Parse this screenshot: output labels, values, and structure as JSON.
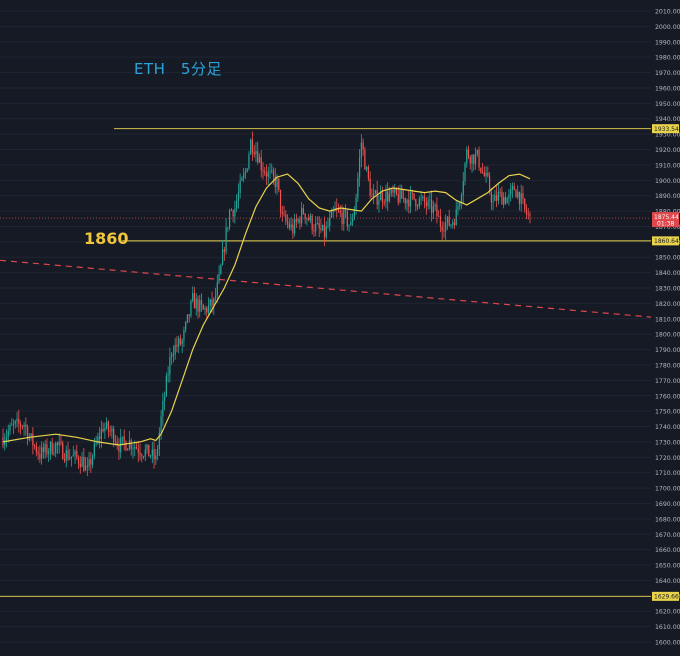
{
  "chart_data": {
    "type": "candlestick",
    "title": "ETH　5分足",
    "symbol": "ETH",
    "timeframe": "5分足",
    "level_label": "1860",
    "y_axis": {
      "ticks": [
        2010,
        2000,
        1990,
        1980,
        1970,
        1960,
        1950,
        1940,
        1930,
        1920,
        1910,
        1900,
        1890,
        1880,
        1870,
        1860,
        1850,
        1840,
        1830,
        1820,
        1810,
        1800,
        1790,
        1780,
        1770,
        1760,
        1750,
        1740,
        1730,
        1720,
        1710,
        1700,
        1690,
        1680,
        1670,
        1660,
        1650,
        1640,
        1630,
        1620,
        1610,
        1600
      ],
      "ylim": [
        1600,
        2010
      ],
      "tick_format": "0.00",
      "position": "right"
    },
    "horizontal_lines": [
      {
        "value": 1933.54,
        "label": "1933.54",
        "color": "#d4c04a",
        "style": "solid"
      },
      {
        "value": 1860.64,
        "label": "1860.64",
        "color": "#e8d34a",
        "style": "solid"
      },
      {
        "value": 1629.66,
        "label": "1629.66",
        "color": "#d4c04a",
        "style": "solid"
      }
    ],
    "trendline": {
      "from": {
        "x": 0,
        "y": 1848
      },
      "to": {
        "x": 130,
        "y": 1809
      },
      "color": "#e0474c",
      "style": "dashed"
    },
    "current_price": {
      "value": 1875.44,
      "label": "1875.44",
      "countdown": "01:38",
      "color": "#e0474c"
    },
    "moving_average": {
      "color": "#e8d34a",
      "points": [
        [
          0,
          1730
        ],
        [
          5,
          1733
        ],
        [
          10,
          1735
        ],
        [
          14,
          1733
        ],
        [
          18,
          1730
        ],
        [
          22,
          1728
        ],
        [
          26,
          1730
        ],
        [
          28,
          1732
        ],
        [
          29,
          1731
        ],
        [
          30,
          1735
        ],
        [
          32,
          1750
        ],
        [
          34,
          1770
        ],
        [
          36,
          1790
        ],
        [
          38,
          1806
        ],
        [
          40,
          1818
        ],
        [
          42,
          1830
        ],
        [
          44,
          1845
        ],
        [
          46,
          1865
        ],
        [
          48,
          1883
        ],
        [
          50,
          1895
        ],
        [
          52,
          1902
        ],
        [
          54,
          1904
        ],
        [
          56,
          1898
        ],
        [
          58,
          1888
        ],
        [
          60,
          1882
        ],
        [
          62,
          1880
        ],
        [
          64,
          1882
        ],
        [
          66,
          1881
        ],
        [
          68,
          1880
        ],
        [
          70,
          1888
        ],
        [
          72,
          1893
        ],
        [
          74,
          1895
        ],
        [
          76,
          1894
        ],
        [
          78,
          1893
        ],
        [
          80,
          1892
        ],
        [
          82,
          1893
        ],
        [
          84,
          1892
        ],
        [
          86,
          1887
        ],
        [
          88,
          1884
        ],
        [
          90,
          1888
        ],
        [
          92,
          1892
        ],
        [
          94,
          1898
        ],
        [
          96,
          1903
        ],
        [
          98,
          1904
        ],
        [
          100,
          1901
        ]
      ]
    },
    "candles": {
      "seed": 7,
      "count": 101,
      "path": [
        [
          0,
          1733
        ],
        [
          2,
          1740
        ],
        [
          4,
          1742
        ],
        [
          5,
          1733
        ],
        [
          7,
          1722
        ],
        [
          10,
          1728
        ],
        [
          12,
          1722
        ],
        [
          15,
          1718
        ],
        [
          16,
          1710
        ],
        [
          17,
          1722
        ],
        [
          19,
          1740
        ],
        [
          21,
          1735
        ],
        [
          22,
          1728
        ],
        [
          24,
          1730
        ],
        [
          26,
          1725
        ],
        [
          28,
          1722
        ],
        [
          29,
          1718
        ],
        [
          30,
          1745
        ],
        [
          31,
          1768
        ],
        [
          32,
          1790
        ],
        [
          34,
          1795
        ],
        [
          36,
          1822
        ],
        [
          38,
          1815
        ],
        [
          40,
          1820
        ],
        [
          41,
          1835
        ],
        [
          42,
          1858
        ],
        [
          43,
          1880
        ],
        [
          44,
          1882
        ],
        [
          45,
          1895
        ],
        [
          46,
          1905
        ],
        [
          47,
          1925
        ],
        [
          48,
          1920
        ],
        [
          49,
          1910
        ],
        [
          50,
          1905
        ],
        [
          52,
          1898
        ],
        [
          53,
          1875
        ],
        [
          55,
          1868
        ],
        [
          57,
          1880
        ],
        [
          59,
          1870
        ],
        [
          61,
          1865
        ],
        [
          63,
          1880
        ],
        [
          65,
          1875
        ],
        [
          66,
          1870
        ],
        [
          67,
          1890
        ],
        [
          68,
          1925
        ],
        [
          69,
          1905
        ],
        [
          70,
          1888
        ],
        [
          72,
          1890
        ],
        [
          74,
          1890
        ],
        [
          76,
          1888
        ],
        [
          78,
          1888
        ],
        [
          80,
          1885
        ],
        [
          82,
          1880
        ],
        [
          83,
          1872
        ],
        [
          85,
          1872
        ],
        [
          86,
          1878
        ],
        [
          87,
          1895
        ],
        [
          88,
          1918
        ],
        [
          89,
          1915
        ],
        [
          90,
          1915
        ],
        [
          91,
          1905
        ],
        [
          92,
          1898
        ],
        [
          93,
          1885
        ],
        [
          94,
          1890
        ],
        [
          96,
          1888
        ],
        [
          97,
          1895
        ],
        [
          98,
          1890
        ],
        [
          99,
          1880
        ],
        [
          100,
          1875
        ]
      ],
      "noise": 7,
      "up_color": "#26a69a",
      "down_color": "#ef5350"
    }
  }
}
